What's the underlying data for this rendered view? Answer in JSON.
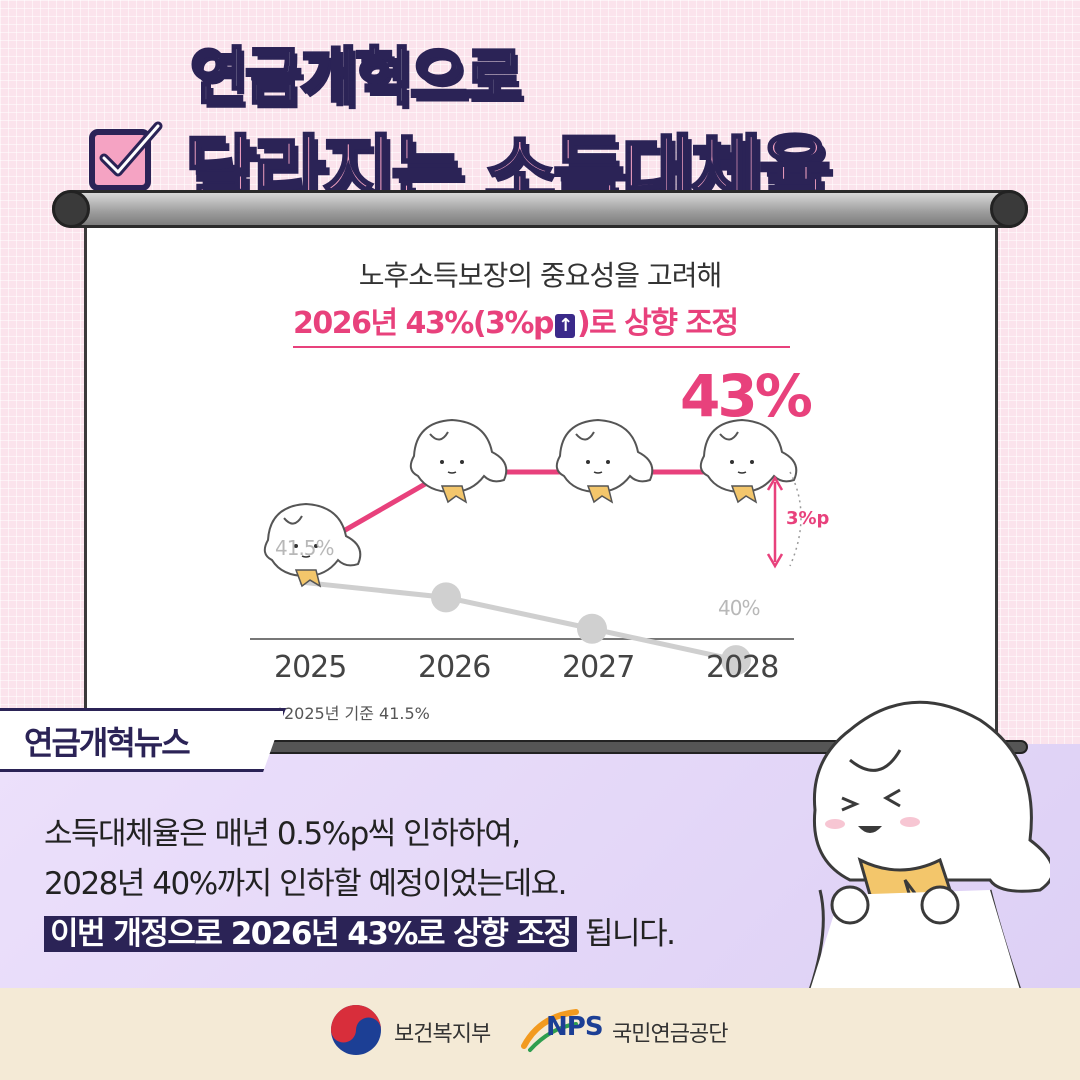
{
  "header": {
    "title_line1": "연금개혁으로",
    "title_line2": "달라지는 소득대체율"
  },
  "screen": {
    "subtitle": "노후소득보장의 중요성을 고려해",
    "highlight_prefix": "2026년 43%(3%p",
    "highlight_suffix": ")로 상향 조정",
    "big_value": "43%",
    "diff_label": "3%p",
    "start_label": "41.5%",
    "end_label": "40%",
    "footnote": "*2025년 기준 41.5%"
  },
  "chart_data": {
    "type": "line",
    "categories": [
      "2025",
      "2026",
      "2027",
      "2028"
    ],
    "series": [
      {
        "values": [
          41.5,
          43,
          43,
          43
        ]
      },
      {
        "values": [
          41.5,
          41,
          40.5,
          40
        ]
      }
    ]
  },
  "news": {
    "tag": "연금개혁뉴스",
    "line1": "소득대체율은 매년 0.5%p씩 인하하여,",
    "line2": "2028년 40%까지 인하할 예정이었는데요.",
    "line3_highlight": "이번 개정으로 2026년 43%로 상향 조정",
    "line3_rest": " 됩니다."
  },
  "footer": {
    "logo1": "보건복지부",
    "logo2_mark": "NPS",
    "logo2": "국민연금공단"
  },
  "colors": {
    "accent": "#e8417c",
    "navy": "#2b2356",
    "gray_line": "#c8c8c8"
  }
}
